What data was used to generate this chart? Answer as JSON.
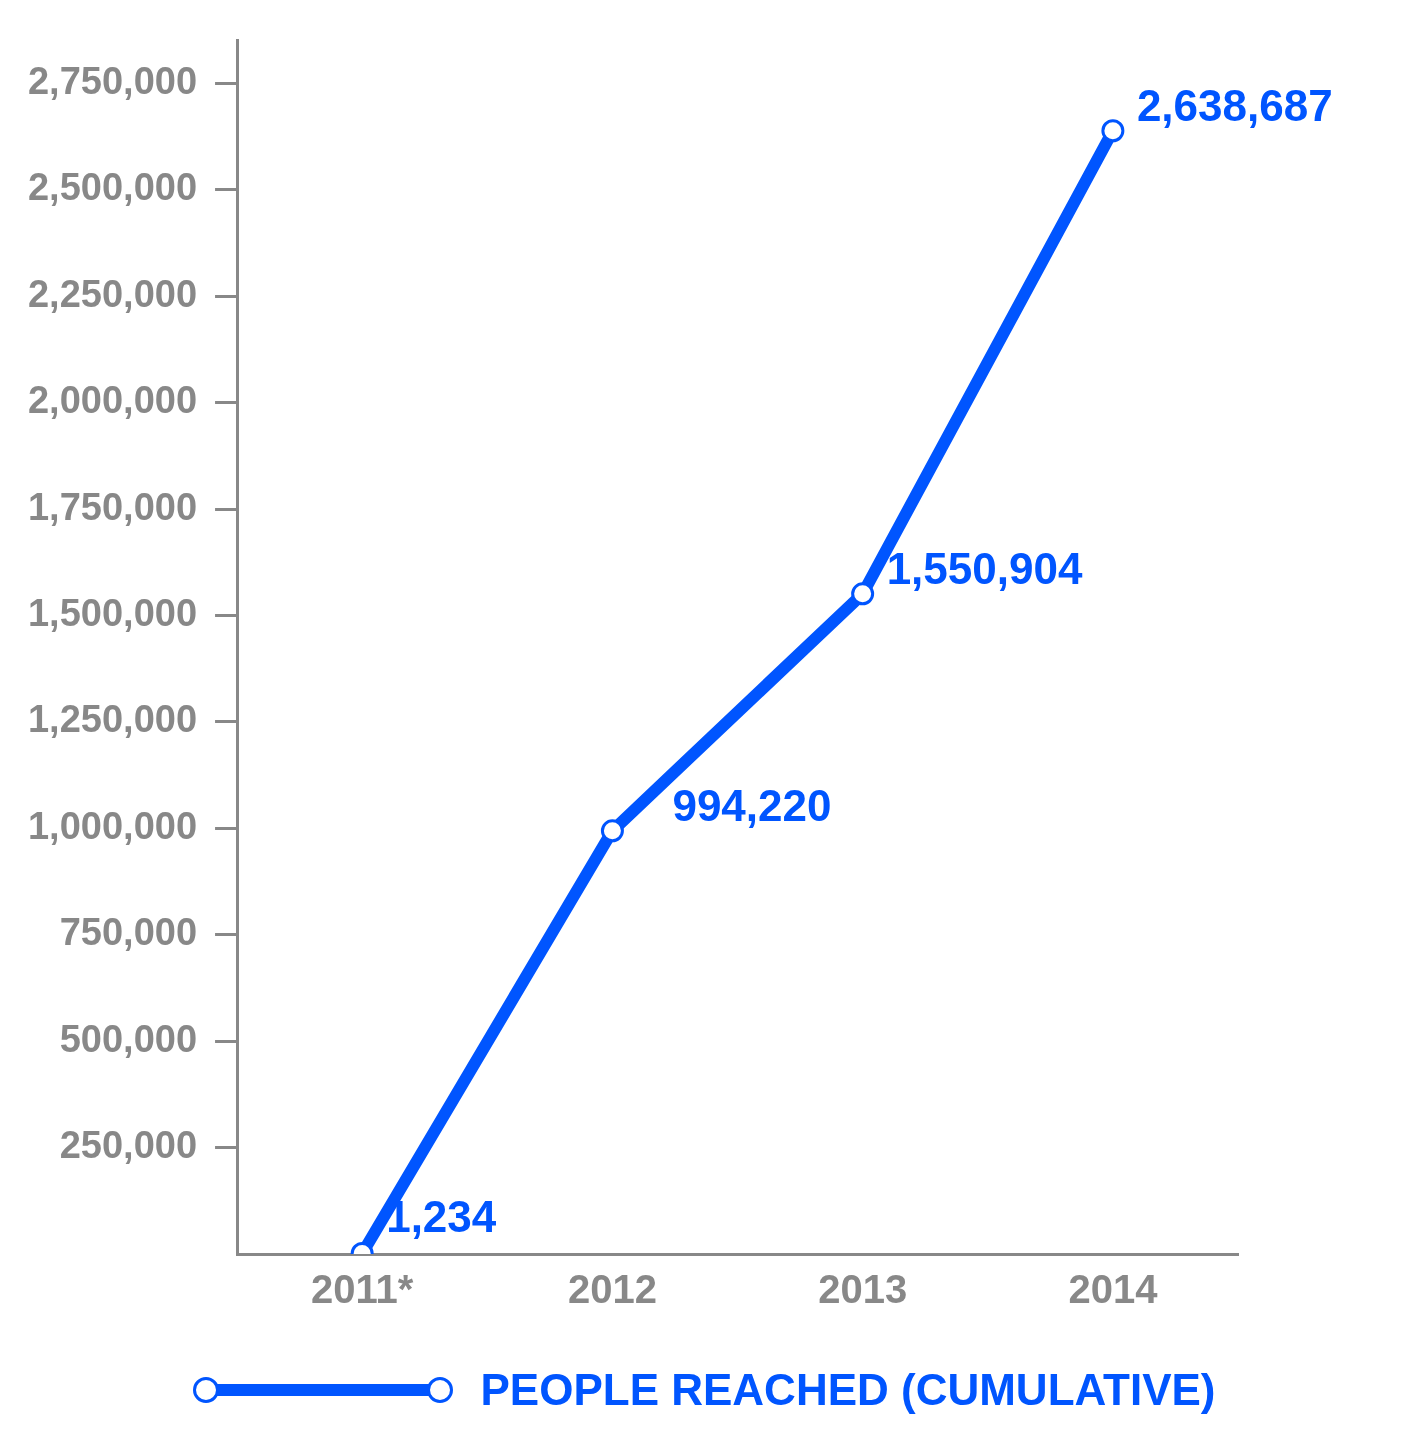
{
  "chart_data": {
    "type": "line",
    "categories": [
      "2011*",
      "2012",
      "2013",
      "2014"
    ],
    "series": [
      {
        "name": "PEOPLE REACHED (CUMULATIVE)",
        "color": "#0055ff",
        "values": [
          1234,
          994220,
          1550904,
          2638687
        ],
        "value_labels": [
          "1,234",
          "994,220",
          "1,550,904",
          "2,638,687"
        ]
      }
    ],
    "ylim": [
      0,
      2850000
    ],
    "yticks": [
      {
        "value": 250000,
        "label": "250,000"
      },
      {
        "value": 500000,
        "label": "500,000"
      },
      {
        "value": 750000,
        "label": "750,000"
      },
      {
        "value": 1000000,
        "label": "1,000,000"
      },
      {
        "value": 1250000,
        "label": "1,250,000"
      },
      {
        "value": 1500000,
        "label": "1,500,000"
      },
      {
        "value": 1750000,
        "label": "1,750,000"
      },
      {
        "value": 2000000,
        "label": "2,000,000"
      },
      {
        "value": 2250000,
        "label": "2,250,000"
      },
      {
        "value": 2500000,
        "label": "2,500,000"
      },
      {
        "value": 2750000,
        "label": "2,750,000"
      }
    ],
    "grid": false,
    "legend": "bottom",
    "marker": "circle",
    "line_style": "solid"
  }
}
